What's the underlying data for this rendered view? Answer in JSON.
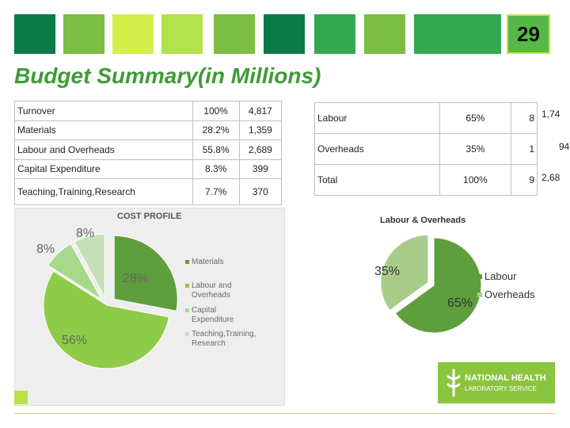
{
  "header": {
    "strip_colors": [
      "#0c7a47",
      "#7cbd43",
      "#d4ef4a",
      "#b2e34a",
      "#7cbd43",
      "#0c7a47",
      "#34a853",
      "#7cbd43",
      "#34a853"
    ],
    "slide_number": "29"
  },
  "title": "Budget Summary(in Millions)",
  "summary_table": [
    {
      "label": "Turnover",
      "percent": "100%",
      "amount": "4,817"
    },
    {
      "label": "Materials",
      "percent": "28.2%",
      "amount": "1,359"
    },
    {
      "label": "Labour and Overheads",
      "percent": "55.8%",
      "amount": "2,689"
    },
    {
      "label": "Capital Expenditure",
      "percent": "8.3%",
      "amount": "399"
    },
    {
      "label": "Teaching,Training,Research",
      "percent": "7.7%",
      "amount": "370"
    }
  ],
  "labour_table": [
    {
      "label": "Labour",
      "percent": "65%",
      "amount": "8"
    },
    {
      "label": "Overheads",
      "percent": "35%",
      "amount": "1"
    },
    {
      "label": "Total",
      "percent": "100%",
      "amount": "9"
    }
  ],
  "overflow_text": [
    "1,74",
    "94",
    "2,68"
  ],
  "chart_data": [
    {
      "type": "pie",
      "title": "COST PROFILE",
      "labels": [
        "Materials",
        "Labour and Overheads",
        "Capital Expenditure",
        "Teaching,Training, Research"
      ],
      "legend_lines": [
        [
          "Materials"
        ],
        [
          "Labour and",
          "Overheads"
        ],
        [
          "Capital",
          "Expenditure"
        ],
        [
          "Teaching,Training,",
          "Research"
        ]
      ],
      "values": [
        28,
        56,
        8,
        8
      ],
      "value_labels": [
        "28%",
        "56%",
        "8%",
        "8%"
      ],
      "colors": [
        "#5e9e3c",
        "#8ecb48",
        "#a8d98a",
        "#c5e0b6"
      ],
      "legend_position": "right"
    },
    {
      "type": "pie",
      "title": "Labour & Overheads",
      "labels": [
        "Labour",
        "Overheads"
      ],
      "values": [
        65,
        35
      ],
      "value_labels": [
        "65%",
        "35%"
      ],
      "colors": [
        "#5e9e3c",
        "#a9cc8b"
      ],
      "legend_position": "right"
    }
  ],
  "logo": {
    "line1": "NATIONAL HEALTH",
    "line2": "LABORATORY SERVICE"
  }
}
